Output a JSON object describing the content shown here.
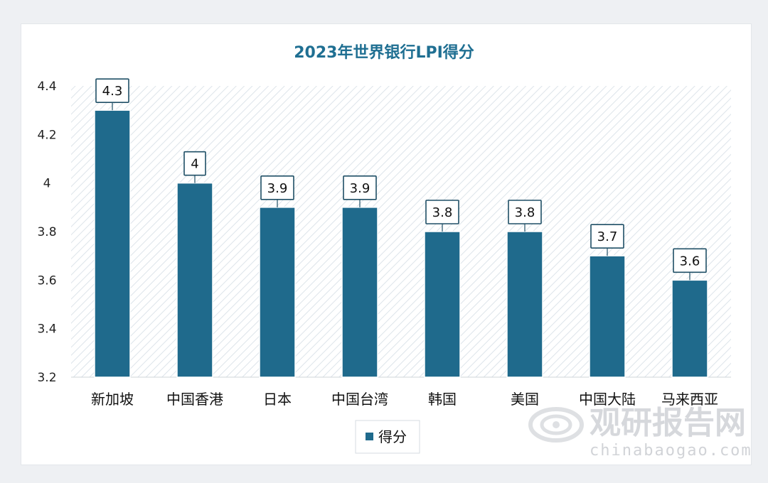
{
  "chart_data": {
    "type": "bar",
    "title": "2023年世界银行LPI得分",
    "categories": [
      "新加坡",
      "中国香港",
      "日本",
      "中国台湾",
      "韩国",
      "美国",
      "中国大陆",
      "马来西亚"
    ],
    "series": [
      {
        "name": "得分",
        "values": [
          4.3,
          4,
          3.9,
          3.9,
          3.8,
          3.8,
          3.7,
          3.6
        ],
        "color": "#1f6a8c"
      }
    ],
    "data_labels": [
      "4.3",
      "4",
      "3.9",
      "3.9",
      "3.8",
      "3.8",
      "3.7",
      "3.6"
    ],
    "xlabel": "",
    "ylabel": "",
    "ylim": [
      3.2,
      4.4
    ],
    "yticks": [
      3.2,
      3.4,
      3.6,
      3.8,
      4,
      4.2,
      4.4
    ],
    "ytick_labels": [
      "3.2",
      "3.4",
      "3.6",
      "3.8",
      "4",
      "4.2",
      "4.4"
    ],
    "legend_position": "bottom",
    "grid": false
  },
  "watermark": {
    "cn": "观研报告网",
    "en": "chinabaogao.com"
  }
}
